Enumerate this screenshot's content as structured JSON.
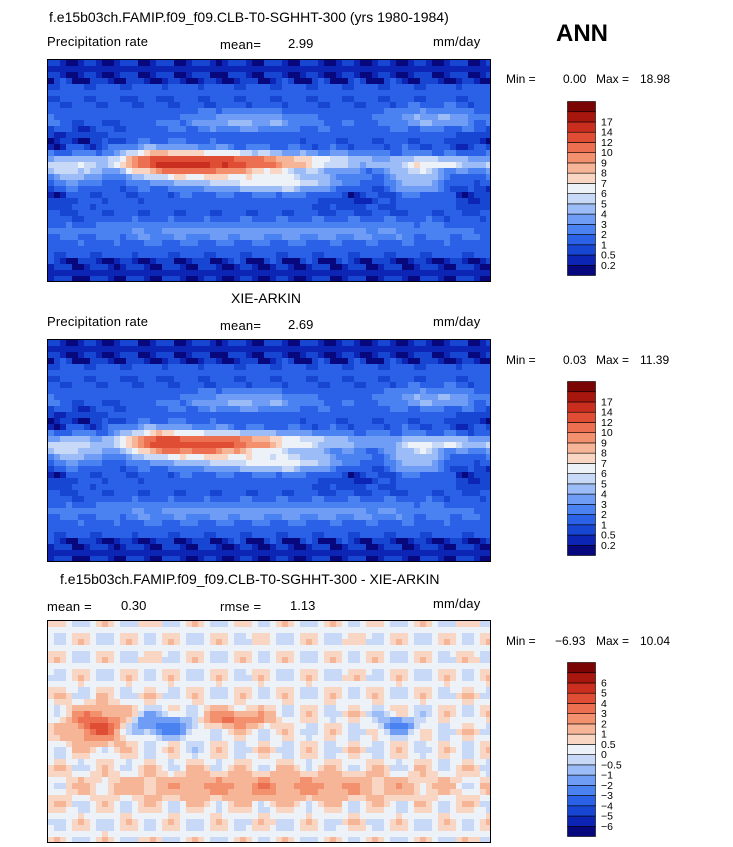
{
  "season": "ANN",
  "colors": {
    "abs_scale": [
      "#08087e",
      "#0c25b4",
      "#1746d2",
      "#2a61e6",
      "#4a82f2",
      "#6f9df5",
      "#9bbcf6",
      "#c7d9f6",
      "#edf2f8",
      "#f8d6c3",
      "#f6b596",
      "#f3906e",
      "#eb6f50",
      "#df4d35",
      "#c92e1f",
      "#a8170e",
      "#7a0303"
    ],
    "diff_scale": [
      "#08087e",
      "#0c25b4",
      "#1746d2",
      "#2a61e6",
      "#4a82f2",
      "#6f9df5",
      "#9bbcf6",
      "#c7d9f6",
      "#edf2f8",
      "#f8d6c3",
      "#f6b596",
      "#f3906e",
      "#eb6f50",
      "#df4d35",
      "#c92e1f",
      "#a8170e",
      "#7a0303"
    ]
  },
  "chart_data": [
    {
      "type": "heatmap",
      "title": "f.e15b03ch.FAMIP.f09_f09.CLB-T0-SGHHT-300 (yrs 1980-1984)",
      "left_label": "Precipitation rate",
      "stat1_label": "mean=",
      "stat1_value": "2.99",
      "units": "mm/day",
      "min_label": "Min =",
      "min_value": "0.00",
      "max_label": "Max =",
      "max_value": "18.98",
      "levels": [
        "0.2",
        "0.5",
        "1",
        "2",
        "3",
        "4",
        "5",
        "6",
        "7",
        "8",
        "9",
        "10",
        "12",
        "14",
        "17"
      ]
    },
    {
      "type": "heatmap",
      "title": "XIE-ARKIN",
      "left_label": "Precipitation rate",
      "stat1_label": "mean=",
      "stat1_value": "2.69",
      "units": "mm/day",
      "min_label": "Min =",
      "min_value": "0.03",
      "max_label": "Max =",
      "max_value": "11.39",
      "levels": [
        "0.2",
        "0.5",
        "1",
        "2",
        "3",
        "4",
        "5",
        "6",
        "7",
        "8",
        "9",
        "10",
        "12",
        "14",
        "17"
      ]
    },
    {
      "type": "heatmap",
      "title": "f.e15b03ch.FAMIP.f09_f09.CLB-T0-SGHHT-300 - XIE-ARKIN",
      "stat1_label": "mean =",
      "stat1_value": "0.30",
      "stat2_label": "rmse =",
      "stat2_value": "1.13",
      "units": "mm/day",
      "min_label": "Min =",
      "min_value": "−6.93",
      "max_label": "Max =",
      "max_value": "10.04",
      "levels": [
        "−6",
        "−5",
        "−4",
        "−3",
        "−2",
        "−1",
        "−0.5",
        "0",
        "0.5",
        "1",
        "2",
        "3",
        "4",
        "5",
        "6"
      ]
    }
  ]
}
